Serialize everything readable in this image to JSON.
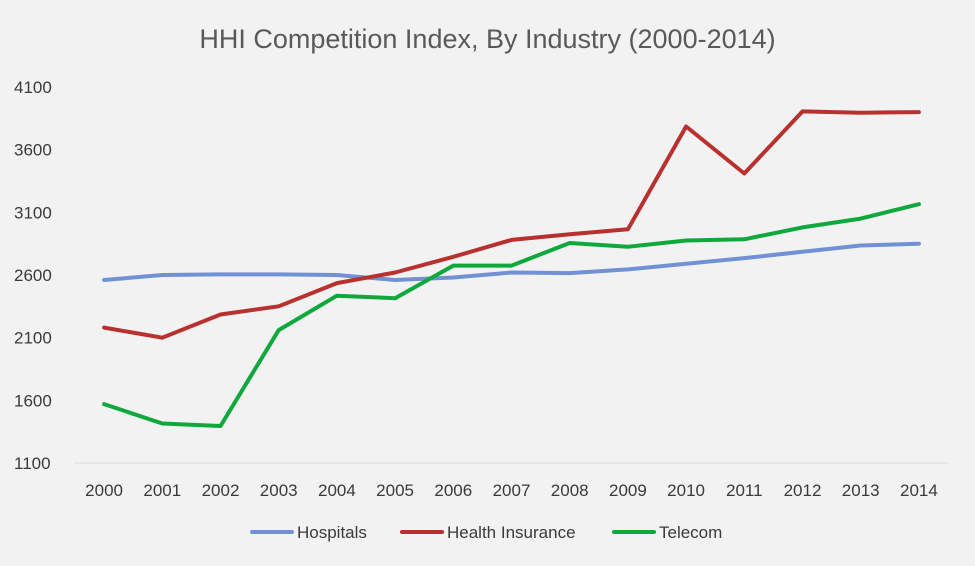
{
  "chart_data": {
    "type": "line",
    "title": "HHI Competition Index, By Industry (2000-2014)",
    "xlabel": "",
    "ylabel": "",
    "categories": [
      "2000",
      "2001",
      "2002",
      "2003",
      "2004",
      "2005",
      "2006",
      "2007",
      "2008",
      "2009",
      "2010",
      "2011",
      "2012",
      "2013",
      "2014"
    ],
    "y_ticks": [
      "1100",
      "1600",
      "2100",
      "2600",
      "3100",
      "3600",
      "4100"
    ],
    "ylim": [
      1100,
      4100
    ],
    "grid": false,
    "legend_position": "bottom",
    "series": [
      {
        "name": "Hospitals",
        "color": "#7191d4",
        "values": [
          2560,
          2600,
          2605,
          2605,
          2600,
          2560,
          2580,
          2620,
          2615,
          2645,
          2690,
          2735,
          2785,
          2835,
          2850
        ]
      },
      {
        "name": "Health Insurance",
        "color": "#b8312f",
        "values": [
          2180,
          2100,
          2285,
          2350,
          2535,
          2620,
          2745,
          2880,
          2925,
          2965,
          3785,
          3410,
          3905,
          3895,
          3900
        ]
      },
      {
        "name": "Telecom",
        "color": "#0fa83c",
        "values": [
          1570,
          1415,
          1395,
          2160,
          2435,
          2415,
          2675,
          2675,
          2855,
          2825,
          2875,
          2885,
          2980,
          3050,
          3165
        ]
      }
    ]
  }
}
